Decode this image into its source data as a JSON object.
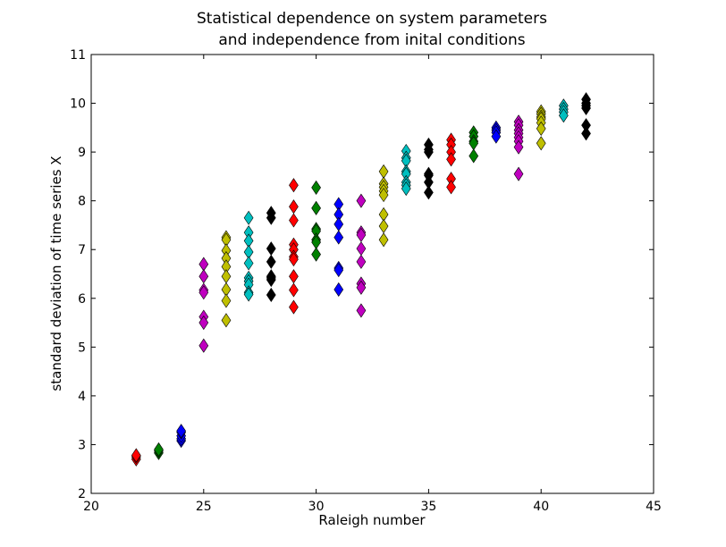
{
  "chart_data": {
    "type": "scatter",
    "title_lines": [
      "Statistical dependence on system parameters",
      "and independence from inital conditions"
    ],
    "xlabel": "Raleigh number",
    "ylabel": "standard deviation of time series X",
    "xlim": [
      20,
      45
    ],
    "ylim": [
      2,
      11
    ],
    "xticks": [
      "20",
      "25",
      "30",
      "35",
      "40",
      "45"
    ],
    "yticks": [
      "2",
      "3",
      "4",
      "5",
      "6",
      "7",
      "8",
      "9",
      "10",
      "11"
    ],
    "grid": false,
    "marker": "diamond",
    "series": [
      {
        "color": "#ff0000",
        "x": [
          22,
          22,
          22,
          29,
          29,
          29,
          29,
          29,
          29,
          29,
          29,
          29,
          29,
          36,
          36,
          36,
          36,
          36,
          36
        ],
        "y": [
          2.7,
          2.75,
          2.78,
          8.32,
          7.88,
          7.6,
          7.1,
          7.0,
          6.85,
          6.45,
          6.17,
          5.82,
          6.8,
          9.25,
          9.15,
          9.0,
          8.85,
          8.45,
          8.28
        ]
      },
      {
        "color": "#008000",
        "x": [
          23,
          23,
          23,
          30,
          30,
          30,
          30,
          30,
          30,
          30,
          37,
          37,
          37,
          37,
          37
        ],
        "y": [
          2.83,
          2.87,
          2.9,
          8.27,
          7.85,
          7.42,
          7.38,
          7.2,
          7.15,
          6.9,
          9.4,
          9.32,
          9.22,
          9.18,
          8.92
        ]
      },
      {
        "color": "#0000ff",
        "x": [
          24,
          24,
          24,
          24,
          24,
          31,
          31,
          31,
          31,
          31,
          31,
          31,
          38,
          38,
          38,
          38
        ],
        "y": [
          3.08,
          3.12,
          3.18,
          3.25,
          3.28,
          7.93,
          7.72,
          7.52,
          7.25,
          6.62,
          6.58,
          6.18,
          9.5,
          9.45,
          9.4,
          9.32
        ]
      },
      {
        "color": "#bf00bf",
        "x": [
          25,
          25,
          25,
          25,
          25,
          25,
          25,
          32,
          32,
          32,
          32,
          32,
          32,
          32,
          32,
          39,
          39,
          39,
          39,
          39,
          39,
          39,
          39
        ],
        "y": [
          6.7,
          6.45,
          6.17,
          6.12,
          5.62,
          5.5,
          5.03,
          8.0,
          7.35,
          7.3,
          7.02,
          6.75,
          6.3,
          6.22,
          5.75,
          9.62,
          9.55,
          9.45,
          9.38,
          9.3,
          9.22,
          9.1,
          8.55
        ]
      },
      {
        "color": "#bfbf00",
        "x": [
          26,
          26,
          26,
          26,
          26,
          26,
          26,
          26,
          26,
          33,
          33,
          33,
          33,
          33,
          33,
          33,
          33,
          40,
          40,
          40,
          40,
          40,
          40,
          40
        ],
        "y": [
          7.25,
          7.2,
          6.98,
          6.82,
          6.65,
          6.45,
          6.18,
          5.95,
          5.55,
          8.6,
          8.35,
          8.28,
          8.2,
          8.12,
          7.72,
          7.48,
          7.2,
          9.83,
          9.78,
          9.72,
          9.68,
          9.6,
          9.48,
          9.18
        ]
      },
      {
        "color": "#00bfbf",
        "x": [
          27,
          27,
          27,
          27,
          27,
          27,
          27,
          27,
          27,
          27,
          34,
          34,
          34,
          34,
          34,
          34,
          34,
          34,
          41,
          41,
          41,
          41
        ],
        "y": [
          7.65,
          7.35,
          7.18,
          6.95,
          6.72,
          6.42,
          6.35,
          6.28,
          6.12,
          6.08,
          9.02,
          8.88,
          8.82,
          8.6,
          8.55,
          8.38,
          8.32,
          8.25,
          9.95,
          9.88,
          9.82,
          9.75
        ]
      },
      {
        "color": "#000000",
        "x": [
          28,
          28,
          28,
          28,
          28,
          28,
          28,
          28,
          35,
          35,
          35,
          35,
          35,
          35,
          35,
          42,
          42,
          42,
          42,
          42,
          42
        ],
        "y": [
          7.75,
          7.65,
          7.02,
          6.75,
          6.45,
          6.42,
          6.38,
          6.07,
          9.15,
          9.05,
          9.0,
          8.55,
          8.52,
          8.38,
          8.17,
          10.08,
          10.0,
          9.95,
          9.9,
          9.55,
          9.38
        ]
      }
    ]
  }
}
